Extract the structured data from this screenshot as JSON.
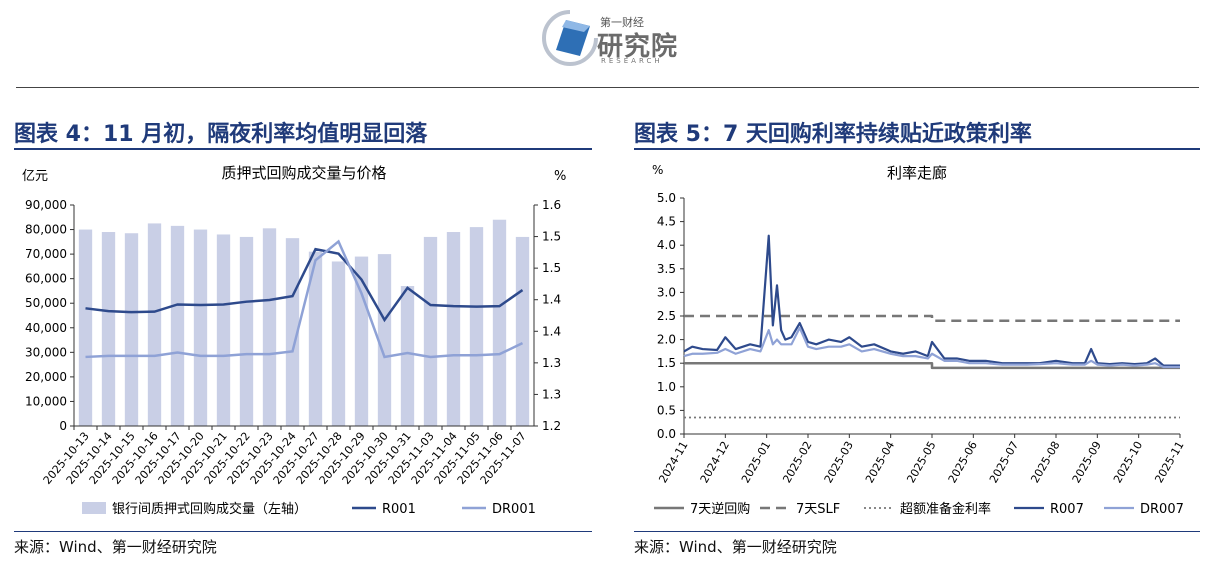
{
  "brand": {
    "cn_small": "第一财经",
    "cn_big": "研究院",
    "en": "RESEARCH"
  },
  "colors": {
    "navy": "#2e4a8c",
    "light": "#8fa2d6",
    "bar": "#c9cfe6",
    "title": "#1f3a7a",
    "gray": "#777777"
  },
  "left": {
    "fig_title": "图表 4：11 月初，隔夜利率均值明显回落",
    "source": "来源：Wind、第一财经研究院",
    "chart_data": {
      "type": "bar",
      "title": "质押式回购成交量与价格",
      "ylabel_left": "亿元",
      "ylabel_right": "%",
      "ylim": [
        0,
        90000
      ],
      "ylim_right": [
        1.2,
        1.6
      ],
      "yticks": [
        "0",
        "10,000",
        "20,000",
        "30,000",
        "40,000",
        "50,000",
        "60,000",
        "70,000",
        "80,000",
        "90,000"
      ],
      "yticks_right": [
        "1.2",
        "1.3",
        "1.3",
        "1.4",
        "1.4",
        "1.5",
        "1.5",
        "1.6"
      ],
      "categories": [
        "2025-10-13",
        "2025-10-14",
        "2025-10-15",
        "2025-10-16",
        "2025-10-17",
        "2025-10-20",
        "2025-10-21",
        "2025-10-22",
        "2025-10-23",
        "2025-10-24",
        "2025-10-27",
        "2025-10-28",
        "2025-10-29",
        "2025-10-30",
        "2025-10-31",
        "2025-11-03",
        "2025-11-04",
        "2025-11-05",
        "2025-11-06",
        "2025-11-07"
      ],
      "series": [
        {
          "name": "银行间质押式回购成交量（左轴）",
          "type": "bar",
          "axis": "left",
          "values": [
            80000,
            79000,
            78500,
            82500,
            81500,
            80000,
            78000,
            77000,
            80500,
            76500,
            71000,
            67000,
            69000,
            70000,
            57000,
            77000,
            79000,
            81000,
            84000,
            77000
          ]
        },
        {
          "name": "R001",
          "type": "line",
          "axis": "right",
          "values": [
            1.413,
            1.408,
            1.406,
            1.407,
            1.42,
            1.419,
            1.42,
            1.425,
            1.428,
            1.435,
            1.52,
            1.512,
            1.465,
            1.392,
            1.45,
            1.419,
            1.417,
            1.416,
            1.417,
            1.446
          ]
        },
        {
          "name": "DR001",
          "type": "line",
          "axis": "right",
          "values": [
            1.325,
            1.327,
            1.327,
            1.327,
            1.333,
            1.327,
            1.327,
            1.33,
            1.33,
            1.335,
            1.5,
            1.534,
            1.44,
            1.325,
            1.332,
            1.325,
            1.328,
            1.328,
            1.33,
            1.35
          ]
        }
      ]
    }
  },
  "right": {
    "fig_title": "图表 5：7 天回购利率持续贴近政策利率",
    "source": "来源：Wind、第一财经研究院",
    "chart_data": {
      "type": "line",
      "title": "利率走廊",
      "ylabel": "%",
      "ylim": [
        0,
        5
      ],
      "yticks": [
        "0.0",
        "0.5",
        "1.0",
        "1.5",
        "2.0",
        "2.5",
        "3.0",
        "3.5",
        "4.0",
        "4.5",
        "5.0"
      ],
      "xticks": [
        "2024-11",
        "2024-12",
        "2025-01",
        "2025-02",
        "2025-03",
        "2025-04",
        "2025-05",
        "2025-06",
        "2025-07",
        "2025-08",
        "2025-09",
        "2025-10",
        "2025-11"
      ],
      "series": [
        {
          "name": "7天逆回购",
          "x": [
            "2024-11",
            "2025-05",
            "2025-05",
            "2025-11"
          ],
          "values": [
            1.5,
            1.5,
            1.4,
            1.4
          ]
        },
        {
          "name": "7天SLF",
          "x": [
            "2024-11",
            "2025-05",
            "2025-05",
            "2025-11"
          ],
          "values": [
            2.5,
            2.5,
            2.4,
            2.4
          ]
        },
        {
          "name": "超额准备金利率",
          "x": [
            "2024-11",
            "2025-11"
          ],
          "values": [
            0.35,
            0.35
          ]
        },
        {
          "name": "R007",
          "x": [
            0,
            0.2,
            0.45,
            0.8,
            1.0,
            1.25,
            1.6,
            1.85,
            2.05,
            2.15,
            2.25,
            2.35,
            2.45,
            2.6,
            2.8,
            3.0,
            3.2,
            3.5,
            3.8,
            4.0,
            4.3,
            4.6,
            5.0,
            5.3,
            5.6,
            5.9,
            6.0,
            6.3,
            6.6,
            6.9,
            7.3,
            7.7,
            8.0,
            8.3,
            8.6,
            9.0,
            9.4,
            9.7,
            9.85,
            10.0,
            10.3,
            10.6,
            10.9,
            11.2,
            11.4,
            11.6,
            12.0
          ],
          "values": [
            1.75,
            1.85,
            1.8,
            1.78,
            2.05,
            1.8,
            1.9,
            1.85,
            4.2,
            2.3,
            3.15,
            2.2,
            2.0,
            2.05,
            2.35,
            1.95,
            1.9,
            2.0,
            1.95,
            2.05,
            1.85,
            1.9,
            1.75,
            1.7,
            1.75,
            1.65,
            1.95,
            1.6,
            1.6,
            1.55,
            1.55,
            1.5,
            1.5,
            1.5,
            1.5,
            1.55,
            1.5,
            1.5,
            1.8,
            1.5,
            1.48,
            1.5,
            1.48,
            1.5,
            1.6,
            1.45,
            1.45
          ]
        },
        {
          "name": "DR007",
          "x": [
            0,
            0.2,
            0.45,
            0.8,
            1.0,
            1.25,
            1.6,
            1.85,
            2.05,
            2.15,
            2.25,
            2.35,
            2.45,
            2.6,
            2.8,
            3.0,
            3.2,
            3.5,
            3.8,
            4.0,
            4.3,
            4.6,
            5.0,
            5.3,
            5.6,
            5.9,
            6.0,
            6.3,
            6.6,
            6.9,
            7.3,
            7.7,
            8.0,
            8.3,
            8.6,
            9.0,
            9.4,
            9.7,
            9.85,
            10.0,
            10.3,
            10.6,
            10.9,
            11.2,
            11.4,
            11.6,
            12.0
          ],
          "values": [
            1.65,
            1.7,
            1.7,
            1.72,
            1.8,
            1.7,
            1.8,
            1.75,
            2.2,
            1.9,
            2.0,
            1.9,
            1.9,
            1.9,
            2.25,
            1.85,
            1.8,
            1.85,
            1.85,
            1.9,
            1.75,
            1.8,
            1.7,
            1.65,
            1.65,
            1.6,
            1.7,
            1.55,
            1.55,
            1.5,
            1.5,
            1.47,
            1.47,
            1.47,
            1.48,
            1.5,
            1.47,
            1.47,
            1.55,
            1.47,
            1.45,
            1.47,
            1.45,
            1.47,
            1.5,
            1.42,
            1.42
          ]
        }
      ]
    }
  }
}
